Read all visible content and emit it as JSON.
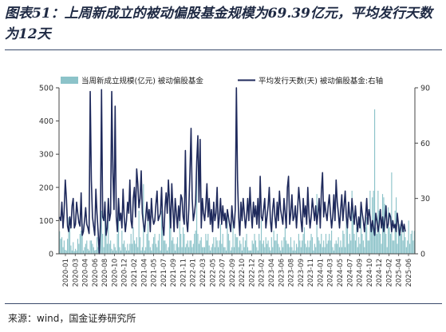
{
  "title": "图表51：上周新成立的被动偏股基金规模为69.39亿元，平均发行天数为12天",
  "source": "来源：wind，国金证券研究所",
  "colors": {
    "bar": "#8cc3c9",
    "line": "#1f2a5c",
    "axis": "#444444"
  },
  "chart_data": {
    "type": "bar+line",
    "legend_position": "top",
    "grid": false,
    "x_tick_labels": [
      "2020-01",
      "2020-03",
      "2020-04",
      "2020-06",
      "2020-08",
      "2020-10",
      "2020-12",
      "2021-02",
      "2021-04",
      "2021-05",
      "2021-07",
      "2021-09",
      "2021-11",
      "2022-01",
      "2022-03",
      "2022-05",
      "2022-07",
      "2022-09",
      "2022-10",
      "2022-12",
      "2023-02",
      "2023-04",
      "2023-06",
      "2023-08",
      "2023-09",
      "2023-11",
      "2024-01",
      "2024-03",
      "2024-05",
      "2024-07",
      "2024-09",
      "2024-10",
      "2024-12",
      "2025-02",
      "2025-04",
      "2025-06"
    ],
    "y_left": {
      "ylim": [
        0,
        500
      ],
      "ticks": [
        0,
        100,
        200,
        300,
        400,
        500
      ]
    },
    "y_right": {
      "ylim": [
        0,
        90
      ],
      "ticks": [
        0,
        30,
        60,
        90
      ]
    },
    "series": [
      {
        "name": "当周新成立规模(亿元) 被动偏股基金",
        "type": "bar",
        "axis": "left",
        "values": [
          68,
          45,
          50,
          20,
          40,
          12,
          10,
          45,
          110,
          80,
          25,
          10,
          35,
          8,
          15,
          10,
          45,
          30,
          60,
          70,
          90,
          10,
          20,
          30,
          40,
          15,
          10,
          40,
          40,
          30,
          20,
          10,
          12,
          50,
          20,
          10,
          70,
          130,
          60,
          20,
          160,
          60,
          30,
          100,
          30,
          40,
          15,
          10,
          30,
          20,
          10,
          60,
          160,
          20,
          10,
          70,
          30,
          40,
          20,
          10,
          30,
          10,
          30,
          60,
          30,
          80,
          40,
          30,
          50,
          20,
          130,
          50,
          10,
          20,
          210,
          10,
          20,
          60,
          110,
          40,
          20,
          10,
          30,
          50,
          60,
          30,
          20,
          40,
          60,
          10,
          130,
          110,
          40,
          40,
          30,
          10,
          20,
          180,
          110,
          40,
          50,
          30,
          10,
          30,
          50,
          20,
          140,
          60,
          20,
          80,
          60,
          20,
          30,
          40,
          20,
          40,
          40,
          20,
          30,
          60,
          70,
          290,
          60,
          30,
          40,
          50,
          20,
          20,
          20,
          60,
          40,
          60,
          25,
          10,
          20,
          30,
          50,
          20,
          50,
          40,
          20,
          40,
          90,
          30,
          60,
          20,
          20,
          10,
          120,
          60,
          40,
          10,
          20,
          100,
          20,
          60,
          50,
          50,
          20,
          40,
          30,
          10,
          50,
          20,
          40,
          60,
          20,
          10,
          10,
          10,
          40,
          30,
          60,
          40,
          20,
          10,
          60,
          40,
          100,
          30,
          40,
          20,
          50,
          30,
          40,
          20,
          10,
          50,
          20,
          70,
          40,
          40,
          60,
          30,
          20,
          10,
          40,
          20,
          50,
          80,
          40,
          30,
          30,
          20,
          50,
          20,
          10,
          40,
          10,
          30,
          20,
          60,
          40,
          20,
          40,
          60,
          80,
          30,
          20,
          40,
          20,
          40,
          60,
          50,
          10,
          30,
          20,
          180,
          50,
          40,
          30,
          60,
          20,
          40,
          20,
          60,
          30,
          40,
          60,
          40,
          70,
          20,
          10,
          30,
          40,
          30,
          50,
          20,
          40,
          20,
          70,
          60,
          20,
          120,
          90,
          30,
          60,
          40,
          190,
          100,
          60,
          40,
          80,
          20,
          50,
          30,
          130,
          60,
          40,
          20,
          80,
          110,
          40,
          40,
          190,
          90,
          170,
          190,
          435,
          80,
          60,
          190,
          130,
          60,
          30,
          180,
          170,
          150,
          60,
          20,
          140,
          80,
          60,
          245,
          40,
          40,
          130,
          170,
          30,
          80,
          90,
          60,
          80,
          40,
          70,
          50,
          20,
          40,
          100,
          30,
          60,
          70,
          40,
          69
        ],
        "final_value_label": 69.39
      },
      {
        "name": "平均发行天数(天) 被动偏股基金:右轴",
        "type": "line",
        "axis": "right",
        "values": [
          20,
          18,
          28,
          14,
          23,
          40,
          30,
          15,
          12,
          20,
          14,
          26,
          30,
          14,
          16,
          28,
          22,
          17,
          15,
          33,
          10,
          12,
          18,
          25,
          16,
          14,
          11,
          88,
          40,
          20,
          15,
          10,
          35,
          22,
          12,
          0,
          15,
          89,
          20,
          18,
          28,
          10,
          14,
          30,
          18,
          22,
          88,
          44,
          24,
          80,
          20,
          12,
          30,
          18,
          22,
          14,
          35,
          20,
          12,
          18,
          28,
          22,
          40,
          18,
          14,
          30,
          36,
          20,
          46,
          38,
          25,
          30,
          45,
          22,
          16,
          12,
          20,
          28,
          18,
          24,
          12,
          30,
          20,
          16,
          18,
          27,
          34,
          18,
          20,
          22,
          36,
          15,
          10,
          25,
          33,
          22,
          40,
          28,
          14,
          38,
          24,
          12,
          30,
          22,
          14,
          26,
          18,
          32,
          30,
          20,
          16,
          56,
          18,
          12,
          24,
          44,
          68,
          30,
          18,
          22,
          28,
          50,
          64,
          28,
          62,
          14,
          30,
          22,
          18,
          26,
          38,
          20,
          30,
          16,
          24,
          12,
          28,
          18,
          22,
          36,
          14,
          20,
          30,
          16,
          26,
          18,
          22,
          14,
          24,
          20,
          16,
          12,
          26,
          18,
          14,
          24,
          90,
          40,
          20,
          10,
          28,
          18,
          30,
          22,
          14,
          20,
          30,
          18,
          36,
          22,
          14,
          28,
          20,
          26,
          16,
          30,
          14,
          42,
          20,
          18,
          24,
          30,
          14,
          20,
          26,
          36,
          18,
          12,
          24,
          30,
          20,
          14,
          28,
          18,
          34,
          24,
          20,
          16,
          30,
          22,
          14,
          36,
          42,
          16,
          22,
          32,
          18,
          20,
          26,
          14,
          24,
          36,
          28,
          18,
          12,
          30,
          20,
          26,
          16,
          36,
          22,
          14,
          20,
          30,
          24,
          18,
          26,
          16,
          22,
          30,
          14,
          34,
          44,
          20,
          28,
          22,
          18,
          26,
          32,
          22,
          14,
          20,
          32,
          18,
          40,
          28,
          22,
          14,
          24,
          32,
          18,
          26,
          34,
          20,
          14,
          28,
          20,
          18,
          30,
          22,
          16,
          26,
          18,
          12,
          20,
          14,
          28,
          22,
          18,
          12,
          20,
          30,
          16,
          24,
          20,
          12,
          18,
          14,
          10,
          22,
          18,
          12,
          16,
          24,
          14,
          20,
          12,
          18,
          26,
          14,
          16,
          22,
          20,
          12,
          18,
          14,
          16,
          12,
          22,
          16,
          10,
          14,
          18,
          12,
          16,
          12
        ]
      }
    ]
  }
}
